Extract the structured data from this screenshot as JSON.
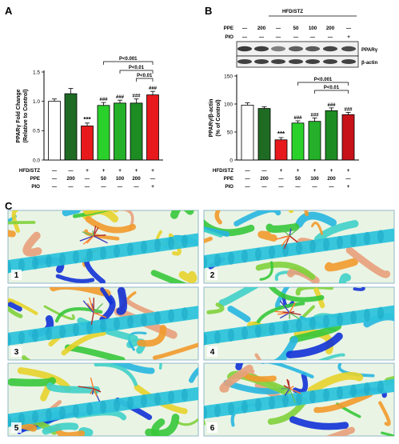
{
  "figure": {
    "panel_a_letter": "A",
    "panel_b_letter": "B",
    "panel_c_letter": "C"
  },
  "colors": {
    "control": "#ffffff",
    "ppe_only": "#1f6b24",
    "hfd": "#e8191c",
    "ppe50": "#2bd12b",
    "ppe100": "#25b02a",
    "ppe200": "#1c8c23",
    "pio_b": "#c8121a",
    "pio_a": "#e8191c"
  },
  "treatment_rows": {
    "labels": [
      "HFD/STZ",
      "PPE",
      "PIO"
    ],
    "hfd_stz": [
      "—",
      "—",
      "+",
      "+",
      "+",
      "+",
      "+"
    ],
    "ppe": [
      "—",
      "200",
      "—",
      "50",
      "100",
      "200",
      "—"
    ],
    "pio": [
      "—",
      "—",
      "—",
      "—",
      "—",
      "—",
      "+"
    ]
  },
  "western_blot": {
    "header_hfd": "HFD/STZ",
    "ppe_label": "PPE",
    "pio_label": "PIO",
    "ppe_values": [
      "—",
      "200",
      "—",
      "50",
      "100",
      "200",
      "—"
    ],
    "pio_values": [
      "—",
      "—",
      "—",
      "—",
      "—",
      "—",
      "+"
    ],
    "band_labels": [
      "PPARγ",
      "β-actin"
    ]
  },
  "chart_data": [
    {
      "type": "bar",
      "panel": "A",
      "ylabel": "PPARγ Fold Change",
      "ylabel2": "(Relative to Control)",
      "ylim": [
        0.0,
        1.5
      ],
      "yticks": [
        "0.0",
        "0.5",
        "1.0",
        "1.5"
      ],
      "values": [
        1.0,
        1.13,
        0.58,
        0.93,
        0.97,
        0.97,
        1.11
      ],
      "errors": [
        0.04,
        0.09,
        0.05,
        0.05,
        0.05,
        0.07,
        0.06
      ],
      "annotations": [
        "",
        "",
        "***",
        "###",
        "###",
        "###",
        "###"
      ],
      "brackets": [
        {
          "from": 3,
          "to": 6,
          "label": "P<0.001"
        },
        {
          "from": 4,
          "to": 6,
          "label": "P<0.01"
        },
        {
          "from": 5,
          "to": 6,
          "label": "P<0.01"
        }
      ]
    },
    {
      "type": "bar",
      "panel": "B",
      "ylabel": "PPARγ/β-actin",
      "ylabel2": "(% of Control)",
      "ylim": [
        0,
        150
      ],
      "yticks": [
        "0",
        "50",
        "100",
        "150"
      ],
      "values": [
        98,
        92,
        36,
        66,
        69,
        88,
        81
      ],
      "errors": [
        4,
        3,
        4,
        4,
        6,
        5,
        4
      ],
      "annotations": [
        "",
        "",
        "***",
        "###",
        "###",
        "###",
        "###"
      ],
      "brackets": [
        {
          "from": 3,
          "to": 6,
          "label": "P<0.001"
        },
        {
          "from": 4,
          "to": 6,
          "label": "P<0.01"
        }
      ]
    }
  ],
  "docking_panels": [
    {
      "label": "1"
    },
    {
      "label": "2"
    },
    {
      "label": "3"
    },
    {
      "label": "4"
    },
    {
      "label": "5"
    },
    {
      "label": "6"
    }
  ]
}
